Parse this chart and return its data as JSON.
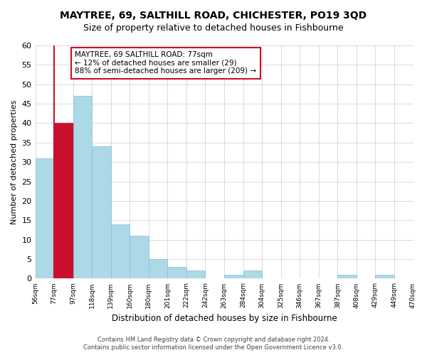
{
  "title": "MAYTREE, 69, SALTHILL ROAD, CHICHESTER, PO19 3QD",
  "subtitle": "Size of property relative to detached houses in Fishbourne",
  "xlabel": "Distribution of detached houses by size in Fishbourne",
  "ylabel": "Number of detached properties",
  "bar_labels": [
    "56sqm",
    "77sqm",
    "97sqm",
    "118sqm",
    "139sqm",
    "160sqm",
    "180sqm",
    "201sqm",
    "222sqm",
    "242sqm",
    "263sqm",
    "284sqm",
    "304sqm",
    "325sqm",
    "346sqm",
    "367sqm",
    "387sqm",
    "408sqm",
    "429sqm",
    "449sqm",
    "470sqm"
  ],
  "bar_heights": [
    31,
    40,
    47,
    34,
    14,
    11,
    5,
    3,
    2,
    0,
    1,
    2,
    0,
    0,
    0,
    0,
    1,
    0,
    1,
    0
  ],
  "highlight_bar_index": 1,
  "highlight_color": "#c8102e",
  "normal_color": "#add8e6",
  "annotation_text": "MAYTREE, 69 SALTHILL ROAD: 77sqm\n← 12% of detached houses are smaller (29)\n88% of semi-detached houses are larger (209) →",
  "annotation_box_color": "#ffffff",
  "annotation_box_edge_color": "#c8102e",
  "ylim": [
    0,
    60
  ],
  "yticks": [
    0,
    5,
    10,
    15,
    20,
    25,
    30,
    35,
    40,
    45,
    50,
    55,
    60
  ],
  "footer_line1": "Contains HM Land Registry data © Crown copyright and database right 2024.",
  "footer_line2": "Contains public sector information licensed under the Open Government Licence v3.0."
}
